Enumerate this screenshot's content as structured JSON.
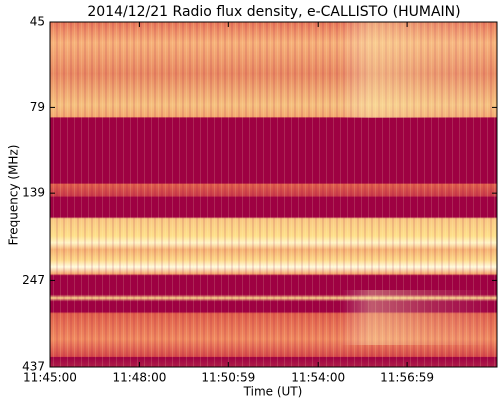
{
  "chart_data": {
    "type": "spectrogram",
    "title": "2014/12/21  Radio flux density, e-CALLISTO (HUMAIN)",
    "x_label": "Time (UT)",
    "y_label": "Frequency (MHz)",
    "xlim": [
      "11:45:00",
      "12:00:00"
    ],
    "xticks": [
      "11:45:00",
      "11:48:00",
      "11:50:59",
      "11:54:00",
      "11:56:59"
    ],
    "ylim": [
      437,
      45
    ],
    "yticks": [
      45,
      79,
      139,
      247,
      437
    ],
    "y_log": true
  }
}
